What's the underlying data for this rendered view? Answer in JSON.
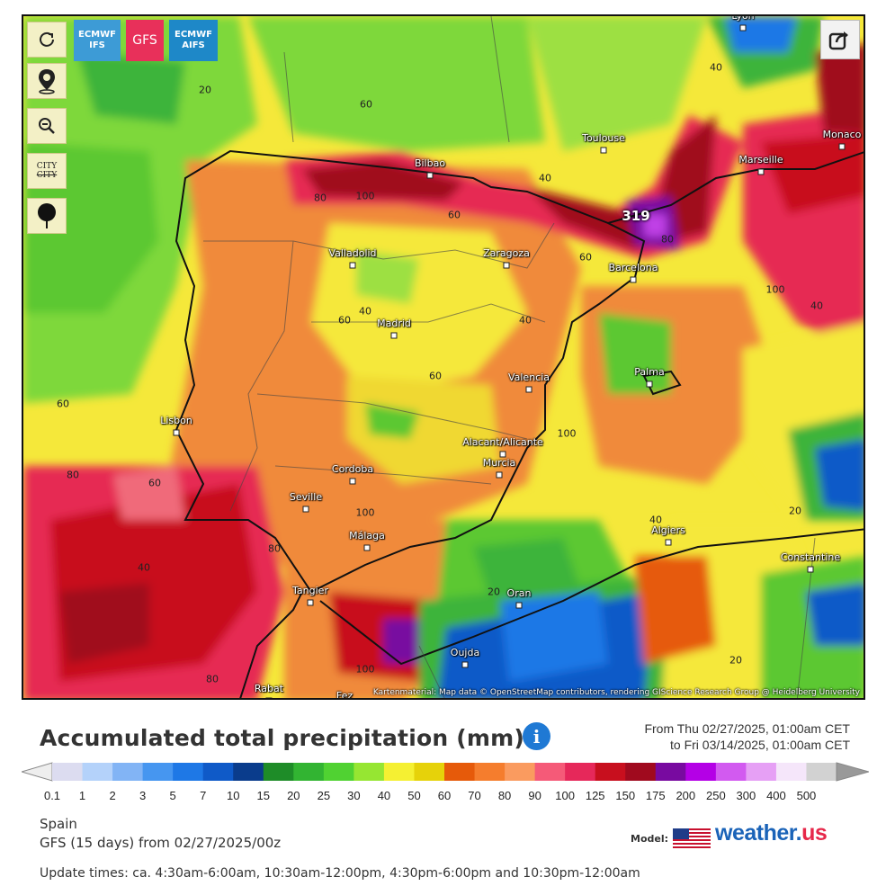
{
  "toolbar": {
    "refresh_icon": "refresh-icon",
    "location_icon": "location-pin-icon",
    "zoom_icon": "zoom-out-icon",
    "city_toggle_label_top": "CITY",
    "city_toggle_label_bottom": "CITY",
    "marker_icon": "pin-marker-icon"
  },
  "models": [
    {
      "label_line1": "ECMWF",
      "label_line2": "IFS",
      "color": "#3d9bd6",
      "active": false
    },
    {
      "label_line1": "GFS",
      "label_line2": "",
      "color": "#e8305a",
      "active": true
    },
    {
      "label_line1": "ECMWF",
      "label_line2": "AIFS",
      "color": "#1e88c8",
      "active": false
    }
  ],
  "share_icon": "share-icon",
  "map": {
    "cities": [
      "Lyon",
      "Toulouse",
      "Marseille",
      "Monaco",
      "Bilbao",
      "Barcelona",
      "Valladolid",
      "Zaragoza",
      "Madrid",
      "Palma",
      "Valencia",
      "Lisbon",
      "Alacant/Alicante",
      "Murcia",
      "Cordoba",
      "Seville",
      "Málaga",
      "Algiers",
      "Constantine",
      "Tangier",
      "Oran",
      "Oujda",
      "Rabat",
      "Fez"
    ],
    "max_value": "319",
    "isolines": [
      "20",
      "60",
      "80",
      "100",
      "60",
      "40",
      "40",
      "60",
      "80",
      "100",
      "40",
      "60",
      "80",
      "60",
      "40",
      "60",
      "40",
      "40",
      "60",
      "100",
      "100",
      "80",
      "80",
      "100",
      "20",
      "40",
      "20",
      "20"
    ],
    "attribution": "Kartenmaterial: Map data © OpenStreetMap contributors, rendering GIScience Research Group @ Heidelberg University"
  },
  "legend": {
    "title": "Accumulated total precipitation (mm)",
    "info_icon": "info-icon",
    "range_from": "From Thu 02/27/2025, 01:00am CET",
    "range_to": "to Fri 03/14/2025, 01:00am CET",
    "scale_ticks": [
      "0.1",
      "1",
      "2",
      "3",
      "5",
      "7",
      "10",
      "15",
      "20",
      "25",
      "30",
      "40",
      "50",
      "60",
      "70",
      "80",
      "90",
      "100",
      "125",
      "150",
      "175",
      "200",
      "250",
      "300",
      "400",
      "500"
    ],
    "scale_colors": [
      "#dcdcf0",
      "#b4d2fa",
      "#82b4f5",
      "#4696f0",
      "#1e78e6",
      "#0f5ac8",
      "#0a3c8c",
      "#1e8c28",
      "#32b432",
      "#50d232",
      "#96e632",
      "#f5f032",
      "#e6d20a",
      "#e65a0a",
      "#f57d2d",
      "#fa9b5f",
      "#f55a78",
      "#e6285a",
      "#c80f1e",
      "#a00a1e",
      "#780aa0",
      "#b400e6",
      "#d25af0",
      "#e6a0f5",
      "#f5e6fa",
      "#d2d2d2"
    ],
    "region": "Spain",
    "model_run": "GFS (15 days) from 02/27/2025/00z",
    "model_label": "Model:",
    "brand": "weather.",
    "brand_suffix": "us",
    "update_times": "Update times: ca. 4:30am-6:00am, 10:30am-12:00pm, 4:30pm-6:00pm and 10:30pm-12:00am"
  }
}
